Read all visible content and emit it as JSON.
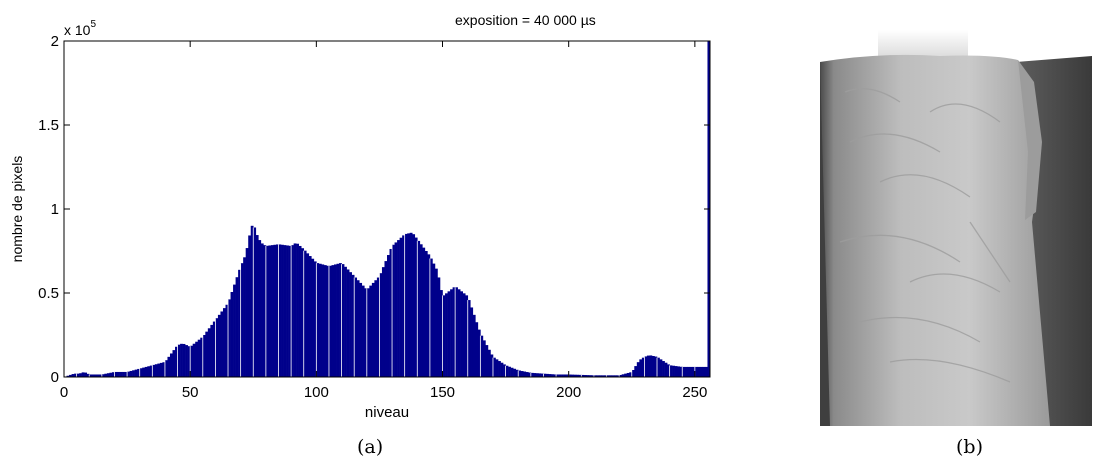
{
  "chart_data": {
    "type": "bar",
    "title": "exposition = 40 000 µs",
    "xlabel": "niveau",
    "ylabel": "nombre de pixels",
    "y_multiplier_label": "x 10",
    "y_multiplier_exponent": "5",
    "xlim": [
      0,
      256
    ],
    "ylim": [
      0,
      2
    ],
    "xticks": [
      0,
      50,
      100,
      150,
      200,
      250
    ],
    "xtick_labels": [
      "0",
      "50",
      "100",
      "150",
      "200",
      "250"
    ],
    "yticks": [
      0,
      0.5,
      1,
      1.5,
      2
    ],
    "ytick_labels": [
      "0",
      "0.5",
      "1",
      "1.5",
      "2"
    ],
    "bar_color": "#00008b",
    "grid": false,
    "legend": "none",
    "profile_levels": [
      0,
      4,
      6,
      8,
      10,
      15,
      20,
      25,
      30,
      35,
      40,
      43,
      45,
      47,
      50,
      55,
      60,
      65,
      70,
      72,
      74,
      75,
      76,
      78,
      80,
      85,
      90,
      92,
      95,
      100,
      105,
      110,
      115,
      120,
      125,
      130,
      135,
      138,
      140,
      145,
      148,
      150,
      155,
      160,
      165,
      170,
      175,
      180,
      185,
      190,
      195,
      200,
      210,
      220,
      225,
      228,
      230,
      232,
      235,
      240,
      245,
      250,
      255
    ],
    "profile_values": [
      0.0,
      0.02,
      0.02,
      0.03,
      0.015,
      0.015,
      0.03,
      0.03,
      0.05,
      0.07,
      0.09,
      0.15,
      0.19,
      0.2,
      0.18,
      0.24,
      0.34,
      0.44,
      0.66,
      0.73,
      0.88,
      0.92,
      0.86,
      0.8,
      0.78,
      0.79,
      0.78,
      0.8,
      0.76,
      0.68,
      0.66,
      0.68,
      0.6,
      0.52,
      0.6,
      0.78,
      0.85,
      0.86,
      0.82,
      0.72,
      0.63,
      0.48,
      0.54,
      0.48,
      0.26,
      0.12,
      0.07,
      0.04,
      0.025,
      0.02,
      0.015,
      0.015,
      0.01,
      0.01,
      0.03,
      0.1,
      0.12,
      0.13,
      0.12,
      0.07,
      0.06,
      0.06,
      0.06
    ],
    "last_bin_value": 2.0
  },
  "captions": {
    "a": "(a)",
    "b": "(b)"
  },
  "photo": {
    "icon": "draped-sheet-image"
  }
}
